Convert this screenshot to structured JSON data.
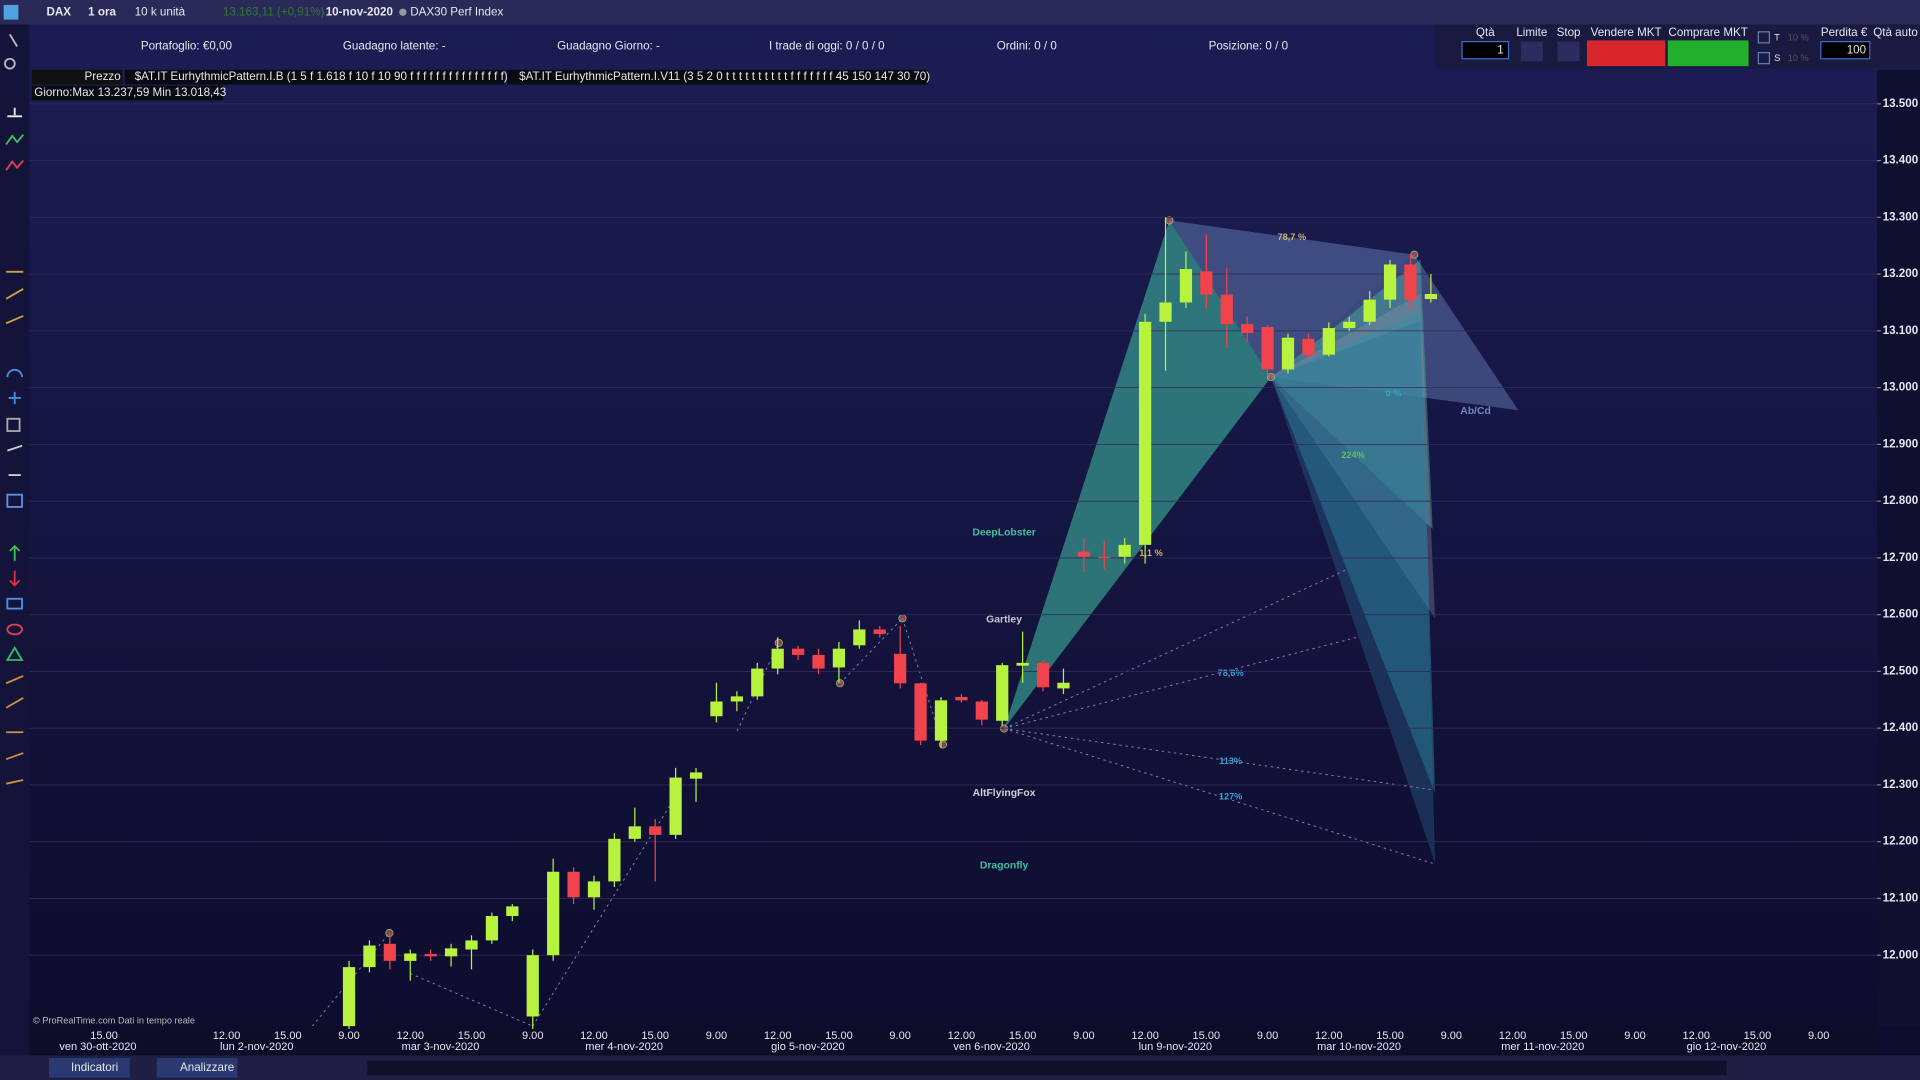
{
  "toolbar": {
    "symbol": "DAX",
    "timeframe": "1 ora",
    "size": "10 k unità",
    "quote": "13.163,11 (+0,91%)",
    "date": "10-nov-2020",
    "instrument": "DAX30 Perf Index"
  },
  "account": {
    "portfolio": "Portafoglio: €0,00",
    "latent": "Guadagno latente: -",
    "daily": "Guadagno Giorno: -",
    "trades": "I trade di oggi: 0 / 0 / 0",
    "orders": "Ordini: 0  / 0",
    "position": "Posizione: 0  / 0"
  },
  "order_panel": {
    "qty_label": "Qtà",
    "qty": "1",
    "limit": "Limite",
    "stop": "Stop",
    "sell": "Vendere MKT",
    "buy": "Comprare MKT",
    "t": "T",
    "s": "S",
    "pct_t": "10 %",
    "pct_s": "10 %",
    "loss_label": "Perdita €",
    "loss": "100",
    "auto_qty": "Qtà auto"
  },
  "indicators": [
    "$AT.IT EurhythmicPattern.I.B (1 5 f 1.618 f 10 f 10 90 f f f f f f f f f f f f f f f)",
    "$AT.IT EurhythmicPattern.I.V11 (3 5 2 0 t t t t t t t t t t f f f f f f f 45 150 147 30 70)"
  ],
  "day_info": "Giorno:Max 13.237,59 Min 13.018,43",
  "footer": {
    "watermark": "© ProRealTime.com Dati in tempo reale",
    "indicators": "Indicatori",
    "analyze": "Analizzare"
  },
  "chart_data": {
    "type": "candlestick",
    "categories": [
      "15.00",
      null,
      null,
      null,
      null,
      null,
      "12.00",
      null,
      null,
      "15.00",
      null,
      null,
      "9.00",
      null,
      null,
      "12.00",
      null,
      null,
      "15.00",
      null,
      null,
      "9.00",
      null,
      null,
      "12.00",
      null,
      null,
      "15.00",
      null,
      null,
      "9.00",
      null,
      null,
      "12.00",
      null,
      null,
      "15.00",
      null,
      null,
      "9.00",
      null,
      null,
      "12.00",
      null,
      null,
      "15.00",
      null,
      null,
      "9.00",
      null,
      null,
      "12.00",
      null,
      null,
      "15.00",
      null,
      null,
      "9.00",
      null,
      null,
      "12.00",
      null,
      null,
      "15.00",
      null,
      null,
      "9.00",
      null,
      null,
      "12.00",
      null,
      null,
      "15.00",
      null,
      null,
      "9.00",
      null,
      null,
      "12.00",
      null,
      null,
      "15.00",
      null,
      null,
      "9.00"
    ],
    "day_labels": [
      "ven 30-ott-2020",
      "lun 2-nov-2020",
      "mar 3-nov-2020",
      "mer 4-nov-2020",
      "gio 5-nov-2020",
      "ven 6-nov-2020",
      "lun 9-nov-2020",
      "mar 10-nov-2020",
      "mer 11-nov-2020",
      "gio 12-nov-2020"
    ],
    "series": [
      {
        "name": "Prezzo",
        "open": [
          null,
          null,
          null,
          null,
          null,
          null,
          null,
          null,
          null,
          null,
          null,
          null,
          11875,
          11979,
          12020,
          11990,
          12002,
          11998,
          12010,
          12026,
          12069,
          11892,
          12000,
          12147,
          12102,
          12130,
          12205,
          12227,
          12212,
          12311,
          12421,
          12447,
          12456,
          12505,
          12540,
          12529,
          12507,
          12546,
          12574,
          12531,
          12479,
          12378,
          12455,
          12447,
          12413,
          12510,
          12515,
          12470,
          12711,
          12702,
          12702,
          12723,
          13116,
          13150,
          13205,
          13164,
          13112,
          13107,
          13032,
          13086,
          13058,
          13105,
          13116,
          13155,
          13217,
          13156,
          null,
          null,
          null,
          null,
          null,
          null,
          null,
          null,
          null,
          null,
          null,
          null,
          null,
          null,
          null,
          null,
          null,
          null,
          null
        ],
        "high": [
          null,
          null,
          null,
          null,
          null,
          null,
          null,
          null,
          null,
          null,
          null,
          null,
          11990,
          12026,
          12040,
          12010,
          12010,
          12020,
          12035,
          12075,
          12090,
          12010,
          12170,
          12155,
          12140,
          12215,
          12260,
          12240,
          12330,
          12330,
          12480,
          12465,
          12515,
          12560,
          12545,
          12540,
          12552,
          12590,
          12580,
          12580,
          12480,
          12455,
          12460,
          12450,
          12515,
          12570,
          12520,
          12505,
          12735,
          12730,
          12735,
          13130,
          13300,
          13240,
          13270,
          13210,
          13125,
          13110,
          13095,
          13095,
          13115,
          13125,
          13170,
          13225,
          13235,
          13200,
          null,
          null,
          null,
          null,
          null,
          null,
          null,
          null,
          null,
          null,
          null,
          null,
          null,
          null,
          null,
          null,
          null,
          null,
          null
        ],
        "low": [
          null,
          null,
          null,
          null,
          null,
          null,
          null,
          null,
          null,
          null,
          null,
          null,
          11870,
          11970,
          11975,
          11955,
          11990,
          11980,
          11975,
          12020,
          12060,
          11870,
          11990,
          12090,
          12080,
          12120,
          12200,
          12130,
          12205,
          12270,
          12410,
          12430,
          12450,
          12495,
          12520,
          12495,
          12480,
          12540,
          12560,
          12470,
          12370,
          12365,
          12445,
          12405,
          12405,
          12480,
          12465,
          12460,
          12675,
          12680,
          12690,
          12690,
          13030,
          13140,
          13140,
          13070,
          13080,
          13020,
          13025,
          13050,
          13055,
          13100,
          13110,
          13140,
          13140,
          13150,
          null,
          null,
          null,
          null,
          null,
          null,
          null,
          null,
          null,
          null,
          null,
          null,
          null,
          null,
          null,
          null,
          null,
          null,
          null
        ],
        "close": [
          null,
          null,
          null,
          null,
          null,
          null,
          null,
          null,
          null,
          null,
          null,
          null,
          11979,
          12017,
          11990,
          12003,
          11998,
          12012,
          12026,
          12069,
          12086,
          12000,
          12147,
          12102,
          12130,
          12205,
          12227,
          12212,
          12313,
          12322,
          12447,
          12456,
          12505,
          12540,
          12529,
          12505,
          12540,
          12574,
          12566,
          12479,
          12378,
          12449,
          12449,
          12415,
          12511,
          12515,
          12472,
          12480,
          12702,
          12700,
          12723,
          13116,
          13150,
          13209,
          13164,
          13112,
          13096,
          13032,
          13088,
          13058,
          13105,
          13116,
          13155,
          13217,
          13155,
          13165,
          null,
          null,
          null,
          null,
          null,
          null,
          null,
          null,
          null,
          null,
          null,
          null,
          null,
          null,
          null,
          null,
          null,
          null,
          null
        ]
      }
    ],
    "up_color": "#b6f23e",
    "down_color": "#f0434c",
    "ylim": [
      11875,
      13560
    ],
    "yticks": [
      {
        "value": 12000,
        "label": "12.000"
      },
      {
        "value": 12100,
        "label": "12.100"
      },
      {
        "value": 12200,
        "label": "12.200"
      },
      {
        "value": 12300,
        "label": "12.300"
      },
      {
        "value": 12400,
        "label": "12.400"
      },
      {
        "value": 12500,
        "label": "12.500"
      },
      {
        "value": 12600,
        "label": "12.600"
      },
      {
        "value": 12700,
        "label": "12.700"
      },
      {
        "value": 12800,
        "label": "12.800"
      },
      {
        "value": 12900,
        "label": "12.900"
      },
      {
        "value": 13000,
        "label": "13.000"
      },
      {
        "value": 13100,
        "label": "13.100"
      },
      {
        "value": 13200,
        "label": "13.200"
      },
      {
        "value": 13300,
        "label": "13.300"
      },
      {
        "value": 13400,
        "label": "13.400"
      },
      {
        "value": 13500,
        "label": "13.500"
      }
    ],
    "grid": true,
    "annotations": [
      "DeepLobster",
      "Gartley",
      "AltFlyingFox",
      "Dragonfly",
      "Ab/Cd",
      "78,7 %",
      "0 %",
      "224%",
      "78,6%",
      "113%",
      "127%",
      "1,1 %"
    ]
  }
}
